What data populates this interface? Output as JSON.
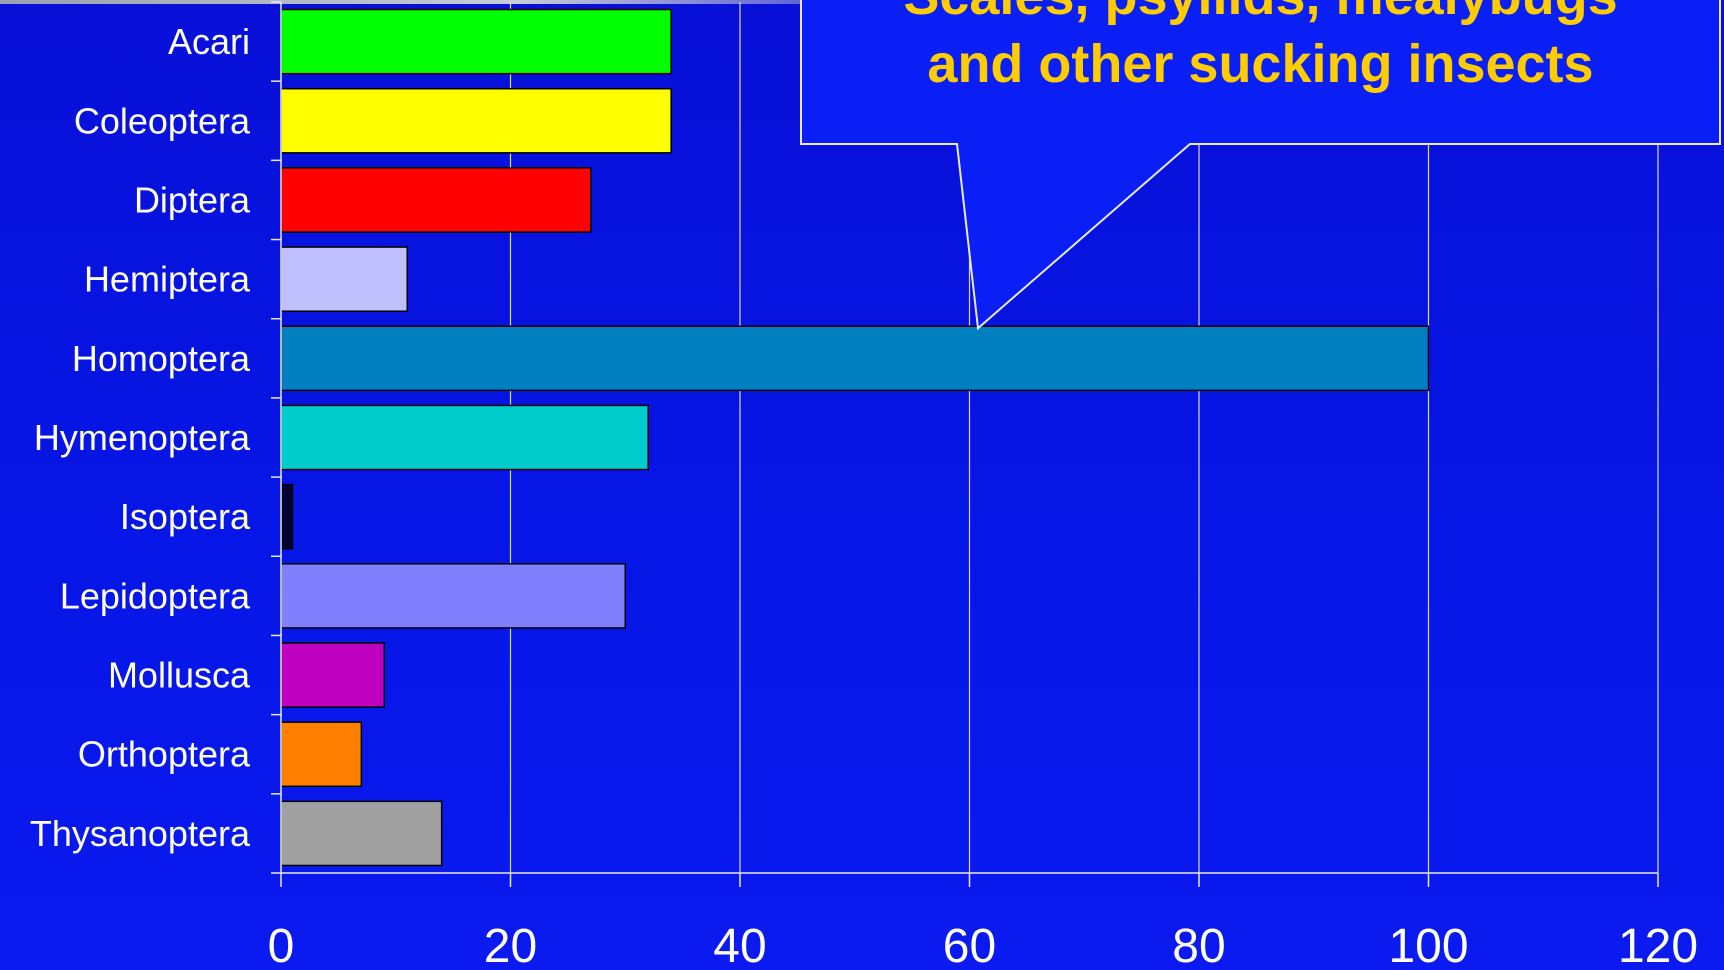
{
  "chart_data": {
    "type": "bar",
    "orientation": "horizontal",
    "categories": [
      "Acari",
      "Coleoptera",
      "Diptera",
      "Hemiptera",
      "Homoptera",
      "Hymenoptera",
      "Isoptera",
      "Lepidoptera",
      "Mollusca",
      "Orthoptera",
      "Thysanoptera"
    ],
    "values": [
      34,
      34,
      27,
      11,
      100,
      32,
      1,
      30,
      9,
      7,
      14
    ],
    "bar_colors": [
      "#00ff00",
      "#ffff00",
      "#ff0000",
      "#c0c0ff",
      "#0080c0",
      "#00cccc",
      "#000033",
      "#8080ff",
      "#c000c0",
      "#ff8000",
      "#a0a0a0"
    ],
    "xlim": [
      0,
      120
    ],
    "xticks": [
      "0",
      "20",
      "40",
      "60",
      "80",
      "100",
      "120"
    ],
    "grid": true,
    "callout": {
      "lines": [
        "Scales, psyllids, mealybugs",
        "and other sucking insects"
      ],
      "points_to": "Homoptera",
      "text_color": "#ffcc00",
      "fill_color": "#0a1ff5"
    },
    "colors": {
      "axis": "#e8e8f0",
      "grid": "#d8d8e8",
      "label_text": "#ffffff"
    }
  }
}
